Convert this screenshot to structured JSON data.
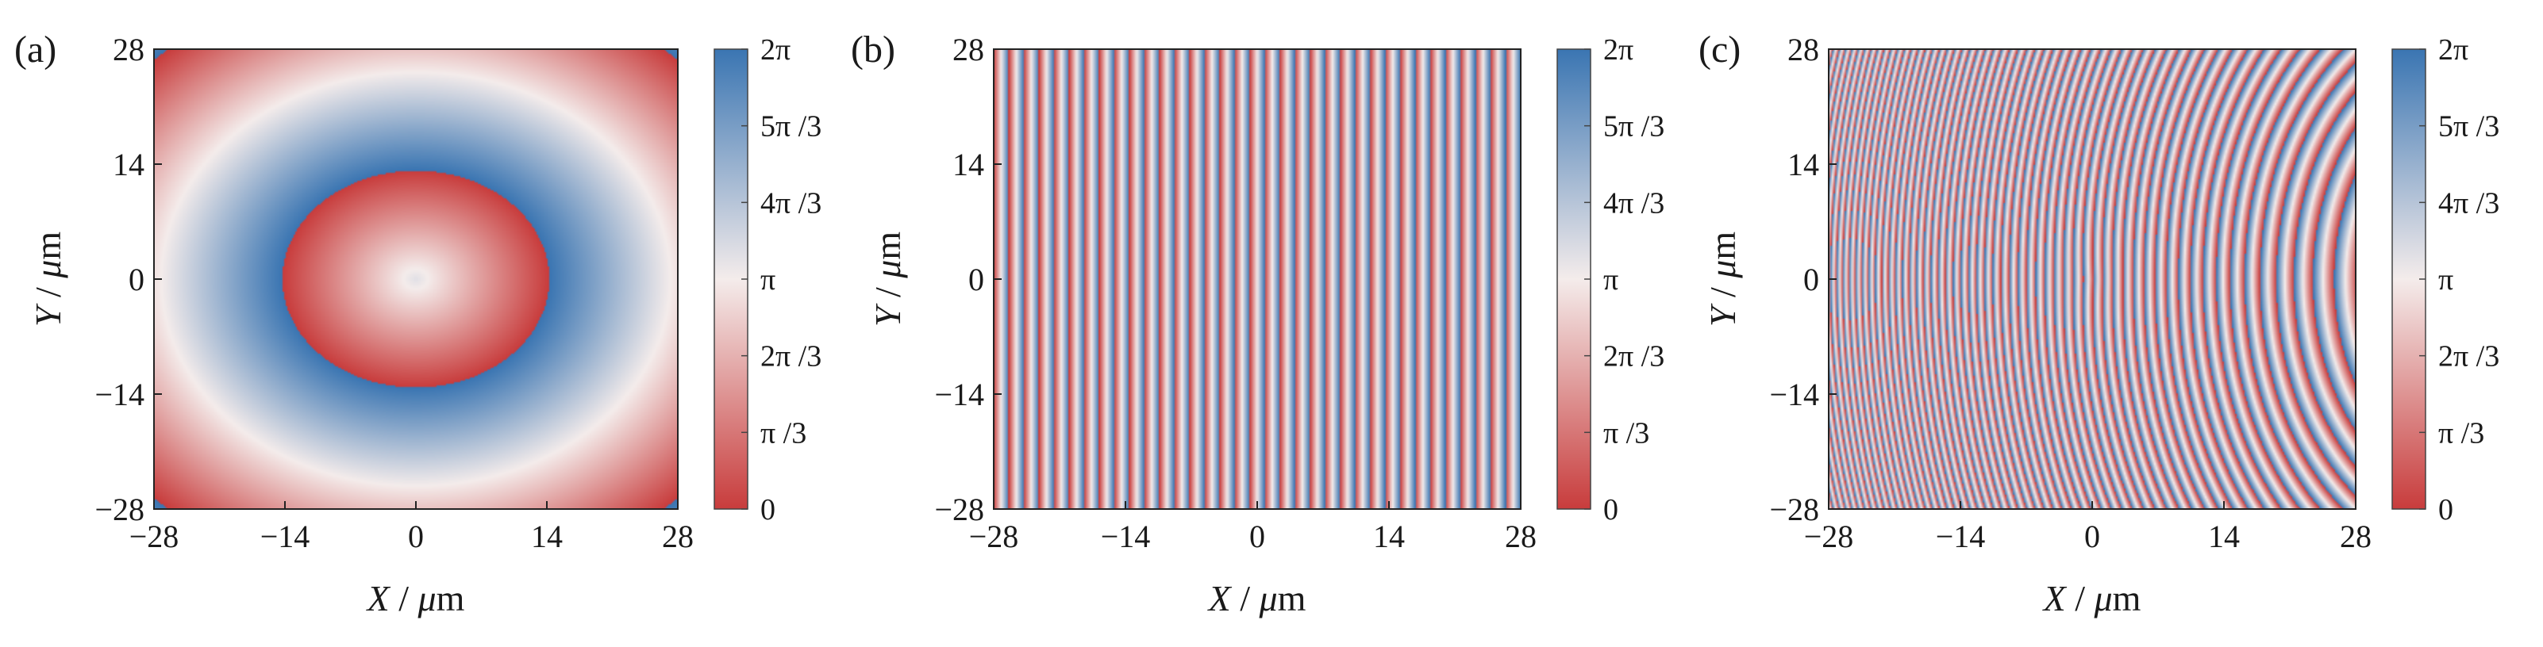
{
  "chart_data": [
    {
      "type": "heatmap",
      "panel_label": "(a)",
      "pattern": "concentric-rings",
      "xlabel": "X / μm",
      "ylabel": "Y / μm",
      "xlim": [
        -28,
        28
      ],
      "ylim": [
        -28,
        28
      ],
      "xticks": [
        "-28",
        "-14",
        "0",
        "14",
        "28"
      ],
      "yticks": [
        "28",
        "14",
        "0",
        "-14",
        "-28"
      ],
      "colorbar": {
        "range": [
          "0",
          "2π"
        ],
        "ticks": [
          "2π",
          "5π /3",
          "4π /3",
          "π",
          "2π /3",
          "π /3",
          "0"
        ]
      },
      "ring_period_um": 24,
      "ellipse_aspect_x_over_y": 1.08
    },
    {
      "type": "heatmap",
      "panel_label": "(b)",
      "pattern": "vertical-stripes",
      "xlabel": "X / μm",
      "ylabel": "Y / μm",
      "xlim": [
        -28,
        28
      ],
      "ylim": [
        -28,
        28
      ],
      "xticks": [
        "-28",
        "-14",
        "0",
        "14",
        "28"
      ],
      "yticks": [
        "28",
        "14",
        "0",
        "-14",
        "-28"
      ],
      "colorbar": {
        "range": [
          "0",
          "2π"
        ],
        "ticks": [
          "2π",
          "5π /3",
          "4π /3",
          "π",
          "2π /3",
          "π /3",
          "0"
        ]
      },
      "stripe_count": 35
    },
    {
      "type": "heatmap",
      "panel_label": "(c)",
      "pattern": "combined-rings-and-stripes",
      "xlabel": "X / μm",
      "ylabel": "Y / μm",
      "xlim": [
        -28,
        28
      ],
      "ylim": [
        -28,
        28
      ],
      "xticks": [
        "-28",
        "-14",
        "0",
        "14",
        "28"
      ],
      "yticks": [
        "28",
        "14",
        "0",
        "-14",
        "-28"
      ],
      "colorbar": {
        "range": [
          "0",
          "2π"
        ],
        "ticks": [
          "2π",
          "5π /3",
          "4π /3",
          "π",
          "2π /3",
          "π /3",
          "0"
        ]
      }
    }
  ],
  "colors": {
    "low": "#c83c3c",
    "mid": "#f4eceb",
    "high": "#3a75b2"
  }
}
